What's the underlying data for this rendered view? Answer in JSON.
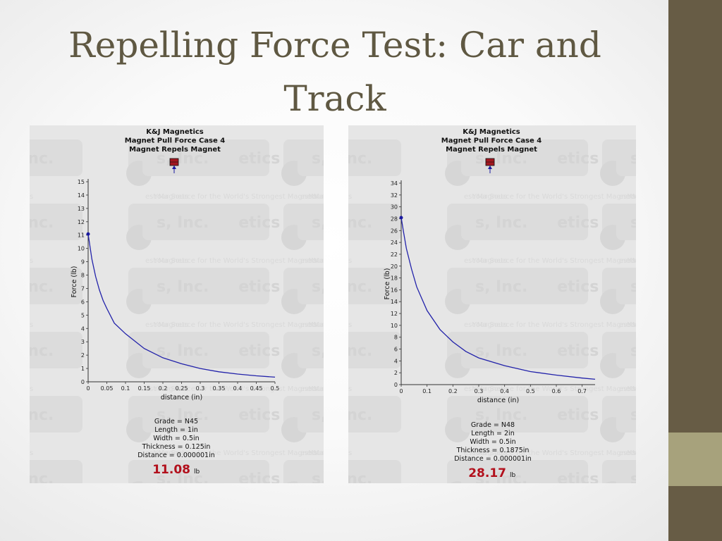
{
  "slide": {
    "title": "Repelling Force Test: Car and Track"
  },
  "theme": {
    "title_color": "#5f5842",
    "bar_dark": "#675c45",
    "bar_light": "#a7a27c",
    "curve_color": "#2222aa",
    "force_color": "#b2101c"
  },
  "watermark": {
    "lines": [
      "K&J Magnetics",
      "s, Inc.",
      "Your Source for the World's Strongest Magnets",
      "est Magnets"
    ]
  },
  "chart_data": [
    {
      "type": "line",
      "header": [
        "K&J Magnetics",
        "Magnet Pull Force Case 4",
        "Magnet Repels Magnet"
      ],
      "xlabel": "distance (in)",
      "ylabel": "Force (lb)",
      "xlim": [
        0,
        0.5
      ],
      "ylim": [
        0,
        15
      ],
      "xticks": [
        "0",
        "0.05",
        "0.1",
        "0.15",
        "0.2",
        "0.25",
        "0.3",
        "0.35",
        "0.4",
        "0.45",
        "0.5"
      ],
      "yticks": [
        "0",
        "1",
        "2",
        "3",
        "4",
        "5",
        "6",
        "7",
        "8",
        "9",
        "10",
        "11",
        "12",
        "13",
        "14",
        "15"
      ],
      "series": [
        {
          "x": [
            0,
            0.01,
            0.02,
            0.03,
            0.04,
            0.05,
            0.07,
            0.1,
            0.15,
            0.2,
            0.25,
            0.3,
            0.35,
            0.4,
            0.45,
            0.5
          ],
          "y": [
            11.08,
            9.2,
            7.9,
            6.9,
            6.1,
            5.5,
            4.4,
            3.6,
            2.5,
            1.8,
            1.35,
            1.0,
            0.75,
            0.58,
            0.45,
            0.35
          ]
        }
      ],
      "params": [
        "Grade = N45",
        "Length = 1in",
        "Width = 0.5in",
        "Thickness = 0.125in",
        "Distance = 0.000001in"
      ],
      "force_value": "11.08",
      "force_unit": "lb"
    },
    {
      "type": "line",
      "header": [
        "K&J Magnetics",
        "Magnet Pull Force Case 4",
        "Magnet Repels Magnet"
      ],
      "xlabel": "distance (in)",
      "ylabel": "Force (lb)",
      "xlim": [
        0,
        0.75
      ],
      "ylim": [
        0,
        34
      ],
      "xticks": [
        "0",
        "0.1",
        "0.2",
        "0.3",
        "0.4",
        "0.5",
        "0.6",
        "0.7"
      ],
      "yticks": [
        "0",
        "2",
        "4",
        "6",
        "8",
        "10",
        "12",
        "14",
        "16",
        "18",
        "20",
        "22",
        "24",
        "26",
        "28",
        "30",
        "32",
        "34"
      ],
      "series": [
        {
          "x": [
            0,
            0.01,
            0.02,
            0.04,
            0.06,
            0.08,
            0.1,
            0.15,
            0.2,
            0.25,
            0.3,
            0.4,
            0.5,
            0.6,
            0.7,
            0.75
          ],
          "y": [
            28.17,
            25.5,
            23.0,
            19.5,
            16.5,
            14.5,
            12.5,
            9.3,
            7.2,
            5.6,
            4.5,
            3.2,
            2.2,
            1.6,
            1.1,
            0.9
          ]
        }
      ],
      "params": [
        "Grade = N48",
        "Length = 2in",
        "Width = 0.5in",
        "Thickness = 0.1875in",
        "Distance = 0.000001in"
      ],
      "force_value": "28.17",
      "force_unit": "lb"
    }
  ]
}
